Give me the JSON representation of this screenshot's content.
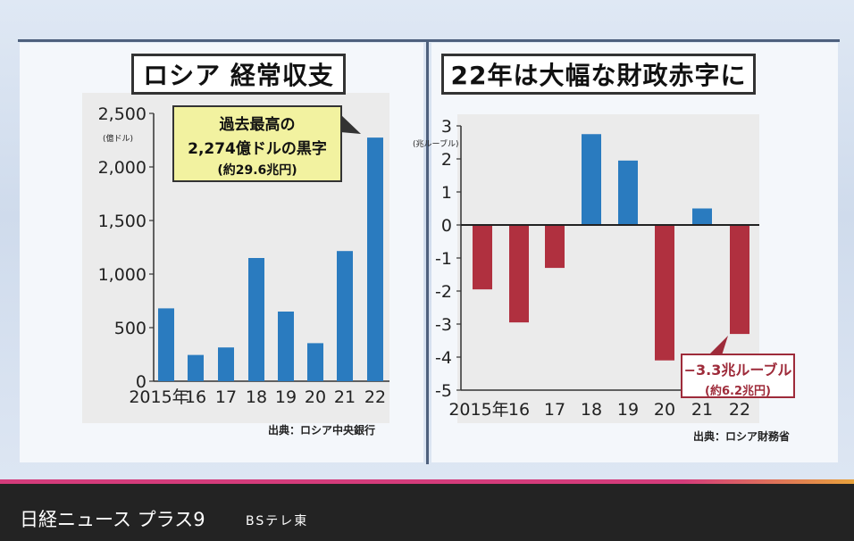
{
  "broadcast": {
    "program_title": "日経ニュース プラス9",
    "channel": "BSテレ東"
  },
  "chart_data": [
    {
      "type": "bar",
      "title": "ロシア 経常収支",
      "unit": "(億ドル)",
      "categories": [
        "2015年",
        "16",
        "17",
        "18",
        "19",
        "20",
        "21",
        "22"
      ],
      "values": [
        680,
        245,
        315,
        1150,
        650,
        355,
        1215,
        2274
      ],
      "ylim": [
        0,
        2500
      ],
      "yticks": [
        "0",
        "500",
        "1,000",
        "1,500",
        "2,000",
        "2,500"
      ],
      "ytick_values": [
        0,
        500,
        1000,
        1500,
        2000,
        2500
      ],
      "bar_color": "#2a7bbf",
      "callout": {
        "lines": [
          "過去最高の",
          "2,274億ドルの黒字",
          "(約29.6兆円)"
        ]
      },
      "source": "出典：ロシア中央銀行"
    },
    {
      "type": "bar",
      "title": "22年は大幅な財政赤字に",
      "unit": "(兆ルーブル)",
      "categories": [
        "2015年",
        "16",
        "17",
        "18",
        "19",
        "20",
        "21",
        "22"
      ],
      "values": [
        -1.95,
        -2.95,
        -1.3,
        2.75,
        1.95,
        -4.1,
        0.5,
        -3.3
      ],
      "ylim": [
        -5,
        3
      ],
      "yticks": [
        "-5",
        "-4",
        "-3",
        "-2",
        "-1",
        "0",
        "1",
        "2",
        "3"
      ],
      "ytick_values": [
        -5,
        -4,
        -3,
        -2,
        -1,
        0,
        1,
        2,
        3
      ],
      "positive_color": "#2a7bbf",
      "negative_color": "#b0303f",
      "callout": {
        "lines": [
          "−3.3兆ルーブル",
          "(約6.2兆円)"
        ]
      },
      "source": "出典：ロシア財務省"
    }
  ]
}
